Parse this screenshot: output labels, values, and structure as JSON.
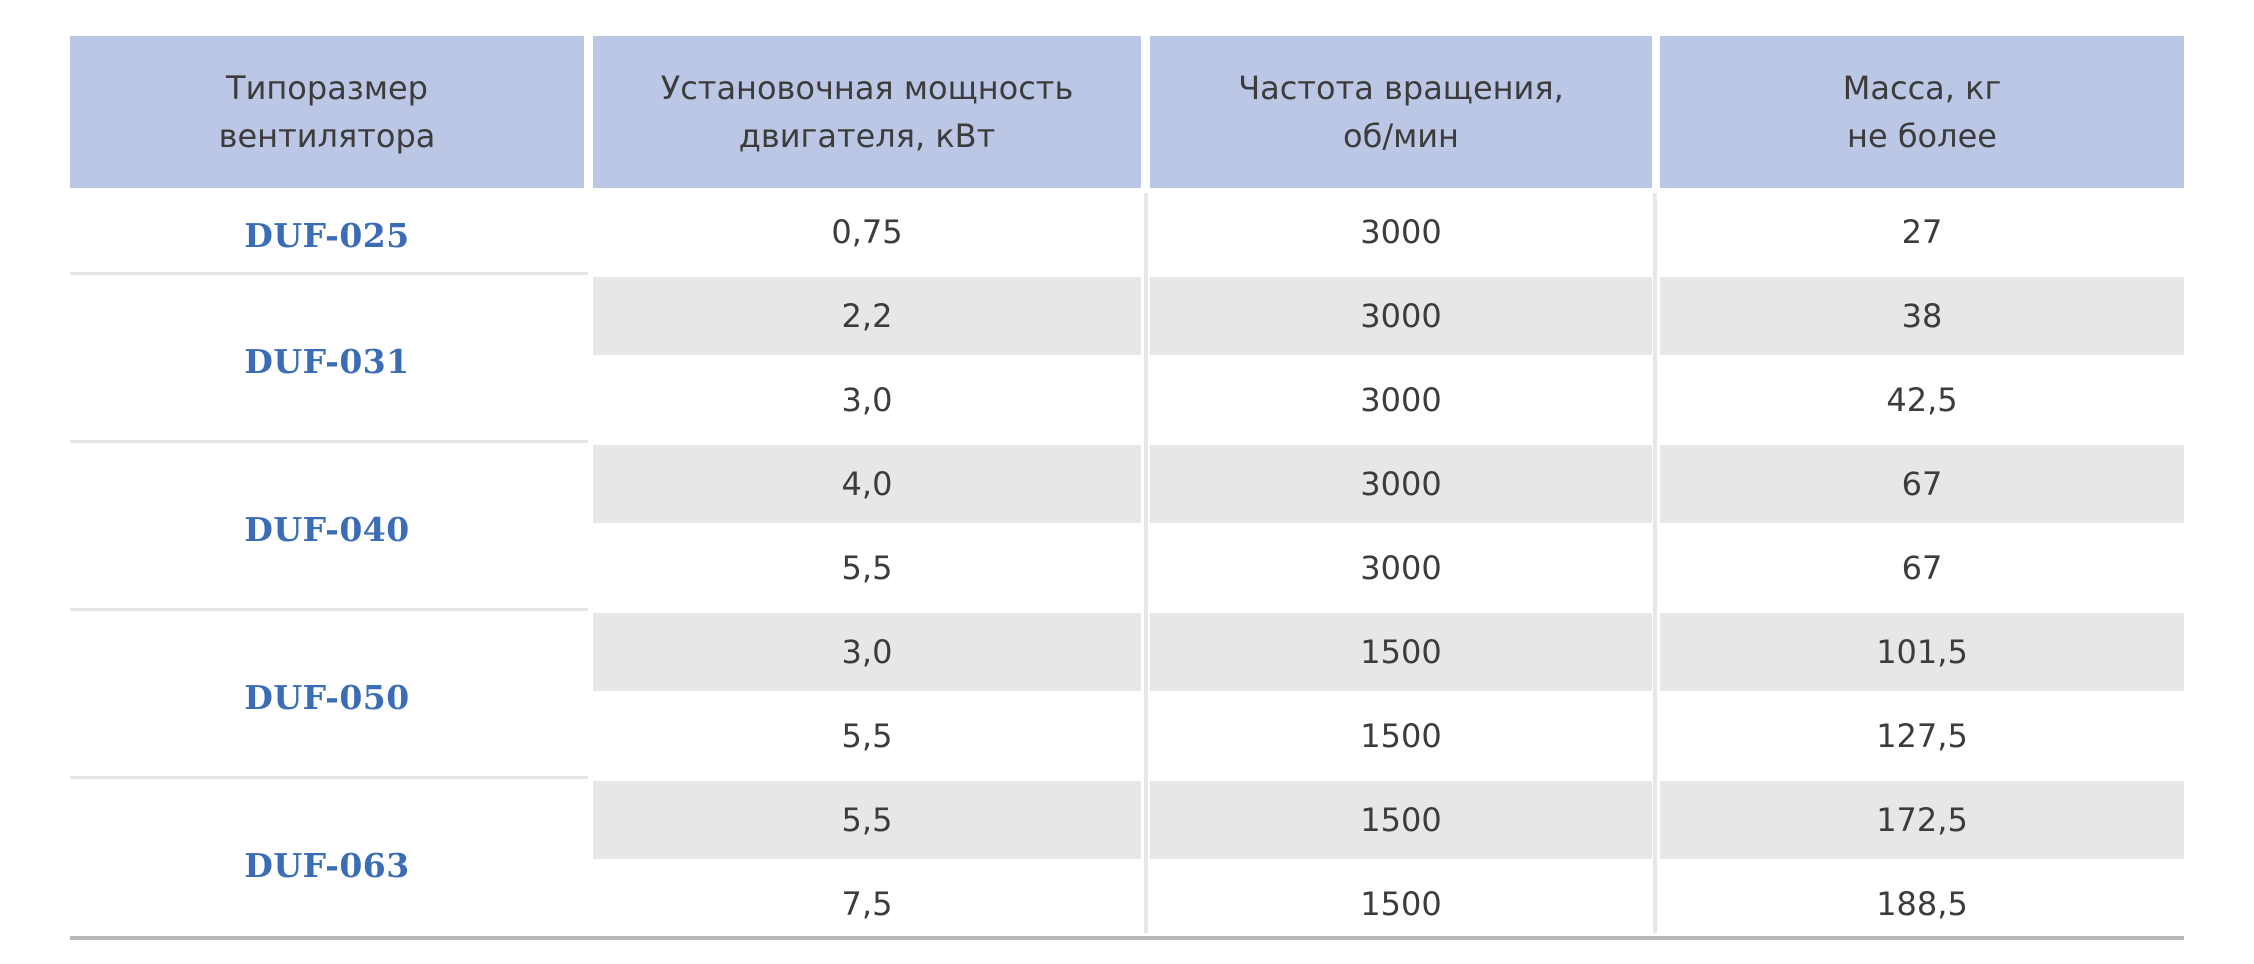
{
  "table": {
    "headers": [
      "Типоразмер\nвентилятора",
      "Установочная мощность\nдвигателя, кВт",
      "Частота вращения,\nоб/мин",
      "Масса, кг\nне более"
    ],
    "groups": [
      {
        "model": "DUF-025",
        "rows": [
          {
            "power": "0,75",
            "rpm": "3000",
            "mass": "27"
          }
        ]
      },
      {
        "model": "DUF-031",
        "rows": [
          {
            "power": "2,2",
            "rpm": "3000",
            "mass": "38"
          },
          {
            "power": "3,0",
            "rpm": "3000",
            "mass": "42,5"
          }
        ]
      },
      {
        "model": "DUF-040",
        "rows": [
          {
            "power": "4,0",
            "rpm": "3000",
            "mass": "67"
          },
          {
            "power": "5,5",
            "rpm": "3000",
            "mass": "67"
          }
        ]
      },
      {
        "model": "DUF-050",
        "rows": [
          {
            "power": "3,0",
            "rpm": "1500",
            "mass": "101,5"
          },
          {
            "power": "5,5",
            "rpm": "1500",
            "mass": "127,5"
          }
        ]
      },
      {
        "model": "DUF-063",
        "rows": [
          {
            "power": "5,5",
            "rpm": "1500",
            "mass": "172,5"
          },
          {
            "power": "7,5",
            "rpm": "1500",
            "mass": "188,5"
          }
        ]
      }
    ]
  },
  "colors": {
    "header_bg": "#bcc7e6",
    "shade_bg": "#e6e7e9",
    "model_text": "#3a6cb7"
  }
}
